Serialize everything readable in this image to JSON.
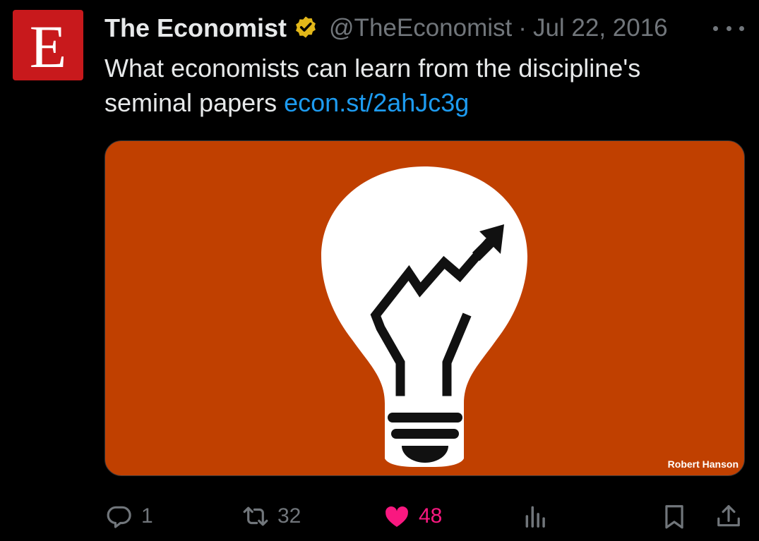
{
  "tweet": {
    "avatar_letter": "E",
    "author_name": "The Economist",
    "handle": "@TheEconomist",
    "separator": "·",
    "date": "Jul 22, 2016",
    "text": "What economists can learn from the discipline's seminal papers",
    "link": "econ.st/2ahJc3g",
    "media": {
      "credit": "Robert Hanson",
      "background_color": "#c04000"
    }
  },
  "actions": {
    "reply_count": "1",
    "retweet_count": "32",
    "like_count": "48",
    "like_color": "#f91880",
    "icons": [
      "reply-icon",
      "retweet-icon",
      "heart-icon",
      "views-icon",
      "bookmark-icon",
      "share-icon"
    ]
  },
  "colors": {
    "link": "#1d9bf0",
    "muted": "#71767b",
    "brand_red": "#c8191c",
    "verified_gold": "#e2b719"
  }
}
